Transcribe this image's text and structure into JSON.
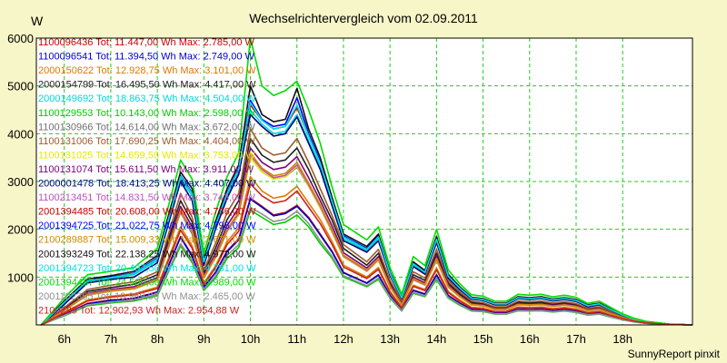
{
  "chart_data": {
    "type": "line",
    "title": "Wechselrichtervergleich vom 02.09.2011",
    "ylabel": "W",
    "xlabel": "",
    "footer": "SunnyReport pinxit",
    "ylim": [
      0,
      6000
    ],
    "xlim": [
      5.4,
      19.5
    ],
    "yticks": [
      1000,
      2000,
      3000,
      4000,
      5000,
      6000
    ],
    "xticks": [
      {
        "value": 6,
        "label": "6h"
      },
      {
        "value": 7,
        "label": "7h"
      },
      {
        "value": 8,
        "label": "8h"
      },
      {
        "value": 9,
        "label": "9h"
      },
      {
        "value": 10,
        "label": "10h"
      },
      {
        "value": 11,
        "label": "11h"
      },
      {
        "value": 12,
        "label": "12h"
      },
      {
        "value": 13,
        "label": "13h"
      },
      {
        "value": 14,
        "label": "14h"
      },
      {
        "value": 15,
        "label": "15h"
      },
      {
        "value": 16,
        "label": "16h"
      },
      {
        "value": 17,
        "label": "17h"
      },
      {
        "value": 18,
        "label": "18h"
      }
    ],
    "grid": true,
    "legend_position": "top-left",
    "x": [
      5.5,
      6.0,
      6.5,
      7.0,
      7.5,
      8.0,
      8.5,
      8.75,
      9.0,
      9.25,
      9.5,
      9.75,
      10.0,
      10.25,
      10.5,
      10.75,
      11.0,
      11.25,
      11.5,
      11.75,
      12.0,
      12.5,
      12.75,
      13.0,
      13.25,
      13.5,
      13.75,
      14.0,
      14.25,
      14.5,
      14.75,
      15.0,
      15.25,
      15.5,
      15.75,
      16.0,
      16.25,
      16.5,
      16.75,
      17.0,
      17.25,
      17.5,
      17.75,
      18.0,
      18.25,
      18.5,
      19.0,
      19.5
    ],
    "series": [
      {
        "name": "1100096436 Tot: 11.447,00 Wh Max: 2.785,00 W",
        "color": "#cc0000",
        "values": [
          0,
          220,
          450,
          520,
          560,
          690,
          1850,
          1450,
          800,
          1100,
          1550,
          1800,
          2650,
          2480,
          2300,
          2350,
          2500,
          2250,
          1900,
          1550,
          1100,
          880,
          1050,
          620,
          320,
          730,
          650,
          1050,
          620,
          460,
          330,
          310,
          250,
          250,
          330,
          320,
          330,
          300,
          320,
          290,
          230,
          250,
          180,
          120,
          70,
          40,
          10,
          0
        ]
      },
      {
        "name": "1100096541 Tot: 11.394,50 Wh Max: 2.749,00 W",
        "color": "#0000cc",
        "values": [
          0,
          210,
          440,
          510,
          550,
          680,
          1830,
          1430,
          790,
          1090,
          1530,
          1780,
          2630,
          2460,
          2280,
          2330,
          2480,
          2230,
          1880,
          1530,
          1090,
          870,
          1040,
          610,
          310,
          720,
          640,
          1040,
          610,
          450,
          320,
          300,
          245,
          245,
          325,
          315,
          325,
          295,
          315,
          285,
          225,
          245,
          175,
          115,
          65,
          35,
          10,
          0
        ]
      },
      {
        "name": "2000150622 Tot: 12.928,75 Wh Max: 3.101,00 W",
        "color": "#e07800",
        "values": [
          0,
          260,
          520,
          600,
          650,
          790,
          2050,
          1650,
          880,
          1230,
          1740,
          2030,
          3100,
          2800,
          2650,
          2700,
          2900,
          2550,
          2200,
          1750,
          1250,
          1000,
          1200,
          700,
          370,
          830,
          740,
          1190,
          700,
          520,
          370,
          350,
          285,
          285,
          375,
          365,
          375,
          340,
          365,
          330,
          260,
          285,
          205,
          135,
          80,
          45,
          10,
          0
        ]
      },
      {
        "name": "2000154799 Tot: 16.495,50 Wh Max: 4.417,00 W",
        "color": "#202020",
        "values": [
          0,
          340,
          700,
          780,
          850,
          1050,
          2600,
          2150,
          1100,
          1600,
          2200,
          2600,
          3900,
          3550,
          3400,
          3450,
          3700,
          3250,
          2700,
          2200,
          1600,
          1250,
          1500,
          880,
          470,
          1050,
          930,
          1500,
          880,
          650,
          470,
          440,
          360,
          360,
          470,
          460,
          470,
          430,
          460,
          420,
          330,
          360,
          260,
          170,
          100,
          55,
          15,
          0
        ]
      },
      {
        "name": "2000149692 Tot: 18.863,75 Wh Max: 4.504,00 W",
        "color": "#00d8d8",
        "values": [
          0,
          460,
          900,
          970,
          1050,
          1350,
          3050,
          2700,
          1300,
          2050,
          2700,
          3200,
          4500,
          4200,
          4000,
          4050,
          4400,
          3850,
          3300,
          2550,
          1800,
          1550,
          1800,
          1050,
          560,
          1250,
          1080,
          1750,
          1000,
          750,
          550,
          520,
          430,
          430,
          560,
          540,
          560,
          510,
          540,
          500,
          390,
          430,
          310,
          200,
          120,
          65,
          15,
          0
        ]
      },
      {
        "name": "1100129553 Tot: 10.143,00 Wh Max: 2.598,00 W",
        "color": "#00cc00",
        "values": [
          0,
          190,
          400,
          460,
          500,
          610,
          1650,
          1300,
          720,
          980,
          1390,
          1620,
          2400,
          2250,
          2100,
          2150,
          2300,
          2050,
          1700,
          1400,
          1000,
          800,
          950,
          560,
          290,
          660,
          590,
          950,
          560,
          410,
          290,
          280,
          225,
          225,
          295,
          290,
          295,
          270,
          290,
          260,
          205,
          225,
          160,
          105,
          60,
          35,
          10,
          0
        ]
      },
      {
        "name": "1100130966 Tot: 14.614,00 Wh Max: 3.672,00 W",
        "color": "#707070",
        "values": [
          0,
          300,
          620,
          700,
          750,
          930,
          2350,
          1900,
          980,
          1400,
          1950,
          2300,
          3500,
          3200,
          3050,
          3100,
          3300,
          2900,
          2450,
          1950,
          1420,
          1120,
          1350,
          790,
          420,
          940,
          830,
          1350,
          790,
          580,
          420,
          395,
          320,
          320,
          420,
          410,
          420,
          385,
          410,
          375,
          295,
          320,
          230,
          150,
          90,
          50,
          12,
          0
        ]
      },
      {
        "name": "1100131006 Tot: 17.690,25 Wh Max: 4.404,00 W",
        "color": "#a05a2c",
        "values": [
          0,
          360,
          740,
          830,
          900,
          1110,
          2750,
          2250,
          1150,
          1700,
          2350,
          2750,
          4100,
          3700,
          3550,
          3600,
          3900,
          3400,
          2850,
          2300,
          1680,
          1320,
          1580,
          930,
          500,
          1110,
          980,
          1580,
          930,
          690,
          500,
          465,
          380,
          380,
          500,
          485,
          500,
          455,
          485,
          445,
          350,
          380,
          275,
          180,
          105,
          60,
          15,
          0
        ]
      },
      {
        "name": "1100131025 Tot: 14.659,50 Wh Max: 3.753,00 W",
        "color": "#e8e800",
        "values": [
          0,
          300,
          620,
          700,
          750,
          930,
          2350,
          1950,
          980,
          1400,
          1950,
          2300,
          3500,
          3200,
          3050,
          3100,
          3320,
          2900,
          2450,
          1950,
          1420,
          1120,
          1350,
          790,
          420,
          940,
          830,
          1350,
          790,
          580,
          420,
          395,
          320,
          320,
          420,
          410,
          420,
          385,
          410,
          375,
          295,
          320,
          230,
          150,
          90,
          50,
          12,
          0
        ]
      },
      {
        "name": "1100131074 Tot: 15.611,50 Wh Max: 3.911,00 W",
        "color": "#800080",
        "values": [
          0,
          320,
          660,
          740,
          800,
          990,
          2480,
          2050,
          1040,
          1500,
          2080,
          2450,
          3700,
          3400,
          3250,
          3300,
          3520,
          3080,
          2600,
          2080,
          1510,
          1190,
          1430,
          840,
          445,
          1000,
          880,
          1430,
          840,
          615,
          445,
          420,
          340,
          340,
          445,
          435,
          445,
          405,
          435,
          400,
          315,
          340,
          245,
          160,
          95,
          52,
          13,
          0
        ]
      },
      {
        "name": "2000001478 Tot: 18.413,25 Wh Max: 4.407,00 W",
        "color": "#000080",
        "values": [
          0,
          430,
          880,
          950,
          1000,
          1300,
          3000,
          2600,
          1250,
          2000,
          2650,
          3150,
          4400,
          4150,
          3950,
          4000,
          4350,
          3800,
          3250,
          2500,
          1760,
          1520,
          1760,
          1030,
          550,
          1220,
          1060,
          1720,
          980,
          735,
          540,
          510,
          420,
          420,
          550,
          530,
          550,
          500,
          530,
          490,
          380,
          420,
          305,
          195,
          115,
          63,
          15,
          0
        ]
      },
      {
        "name": "1100213451 Tot: 14.831,50 Wh Max: 3.743,00 W",
        "color": "#c050c0",
        "values": [
          0,
          305,
          630,
          710,
          760,
          940,
          2370,
          1960,
          990,
          1420,
          1970,
          2330,
          3550,
          3250,
          3080,
          3130,
          3350,
          2930,
          2480,
          1970,
          1440,
          1130,
          1370,
          800,
          425,
          950,
          840,
          1370,
          800,
          590,
          425,
          400,
          325,
          325,
          425,
          415,
          425,
          390,
          415,
          380,
          300,
          325,
          235,
          152,
          91,
          50,
          12,
          0
        ]
      },
      {
        "name": "2001394485 Tot: 20.608,00 Wh Max: 4.736,00 W",
        "color": "#cc0000",
        "values": [
          0,
          470,
          920,
          990,
          1070,
          1380,
          3100,
          2750,
          1320,
          2080,
          2750,
          3250,
          4600,
          4280,
          4100,
          4150,
          4550,
          3950,
          3380,
          2600,
          1840,
          1580,
          1840,
          1070,
          570,
          1280,
          1100,
          1790,
          1020,
          770,
          560,
          530,
          440,
          440,
          570,
          550,
          570,
          520,
          550,
          510,
          400,
          440,
          315,
          205,
          122,
          66,
          15,
          0
        ]
      },
      {
        "name": "2001394725 Tot: 21.022,75 Wh Max: 4.798,00 W",
        "color": "#0000ff",
        "values": [
          0,
          480,
          930,
          1000,
          1080,
          1400,
          3120,
          2770,
          1330,
          2100,
          2770,
          3270,
          4700,
          4300,
          4150,
          4200,
          4750,
          4000,
          3420,
          2630,
          1860,
          1600,
          1860,
          1080,
          575,
          1290,
          1110,
          1800,
          1030,
          775,
          565,
          535,
          445,
          445,
          575,
          555,
          575,
          525,
          555,
          515,
          405,
          445,
          320,
          208,
          124,
          67,
          15,
          0
        ]
      },
      {
        "name": "2100289887 Tot: 15.009,33 Wh Max: 3.671,00 W",
        "color": "#d08a00",
        "values": [
          0,
          310,
          640,
          720,
          770,
          950,
          2400,
          1980,
          1000,
          1440,
          2000,
          2360,
          3600,
          3280,
          3120,
          3170,
          3400,
          2970,
          2510,
          2000,
          1460,
          1150,
          1390,
          810,
          430,
          965,
          850,
          1390,
          810,
          595,
          430,
          405,
          330,
          330,
          430,
          420,
          430,
          395,
          420,
          385,
          305,
          330,
          238,
          155,
          92,
          51,
          12,
          0
        ]
      },
      {
        "name": "2001393249 Tot: 22.138,25 Wh Max: 4.972,00 W",
        "color": "#101010",
        "values": [
          0,
          500,
          960,
          1030,
          1120,
          1450,
          3200,
          2850,
          1380,
          2160,
          2850,
          3350,
          5000,
          4400,
          4250,
          4300,
          4950,
          4100,
          3500,
          2680,
          1900,
          1640,
          1900,
          1100,
          590,
          1320,
          1140,
          1850,
          1060,
          795,
          580,
          550,
          455,
          455,
          590,
          570,
          590,
          540,
          570,
          530,
          415,
          455,
          330,
          213,
          127,
          69,
          16,
          0
        ]
      },
      {
        "name": "2001394723 Tot: 20.497,50 Wh Max: 4.781,00 W",
        "color": "#00e0e0",
        "values": [
          0,
          470,
          920,
          990,
          1070,
          1380,
          3100,
          2750,
          1320,
          2080,
          2750,
          3250,
          4650,
          4280,
          4100,
          4150,
          4600,
          3950,
          3380,
          2600,
          1840,
          1580,
          1840,
          1070,
          570,
          1280,
          1100,
          1790,
          1020,
          770,
          560,
          530,
          440,
          440,
          570,
          550,
          570,
          520,
          550,
          510,
          400,
          440,
          315,
          205,
          122,
          66,
          15,
          0
        ]
      },
      {
        "name": "2001394487 Tot: 24.500,00 Wh Max: 5.989,00 W",
        "color": "#00dd00",
        "values": [
          0,
          560,
          1050,
          1120,
          1200,
          1600,
          3450,
          3050,
          1500,
          2350,
          3100,
          3600,
          6000,
          5000,
          4800,
          4900,
          5100,
          4500,
          3800,
          2900,
          2100,
          1780,
          2050,
          1200,
          640,
          1430,
          1240,
          2000,
          1150,
          860,
          630,
          600,
          495,
          495,
          640,
          620,
          640,
          585,
          620,
          575,
          450,
          495,
          360,
          230,
          138,
          75,
          17,
          0
        ]
      },
      {
        "name": "2001102355 Tot: 10.969,00 Wh Max: 2.465,00 W",
        "color": "#909090",
        "values": [
          0,
          200,
          420,
          480,
          520,
          640,
          1700,
          1350,
          750,
          1020,
          1450,
          1680,
          2460,
          2320,
          2160,
          2210,
          2380,
          2120,
          1760,
          1440,
          1030,
          820,
          980,
          580,
          300,
          680,
          605,
          980,
          580,
          425,
          300,
          288,
          232,
          232,
          305,
          298,
          305,
          278,
          298,
          268,
          212,
          232,
          165,
          108,
          62,
          36,
          10,
          0
        ]
      },
      {
        "name": "2100289 Tot: 12.902,93 Wh Max: 2.954,88 W",
        "color": "#cc2222",
        "values": [
          0,
          250,
          500,
          580,
          630,
          760,
          1980,
          1600,
          850,
          1190,
          1680,
          1960,
          2950,
          2700,
          2550,
          2600,
          2800,
          2460,
          2120,
          1690,
          1210,
          970,
          1160,
          680,
          355,
          805,
          715,
          1150,
          675,
          500,
          355,
          338,
          275,
          275,
          362,
          352,
          362,
          328,
          352,
          318,
          250,
          275,
          198,
          130,
          77,
          43,
          10,
          0
        ]
      }
    ]
  }
}
